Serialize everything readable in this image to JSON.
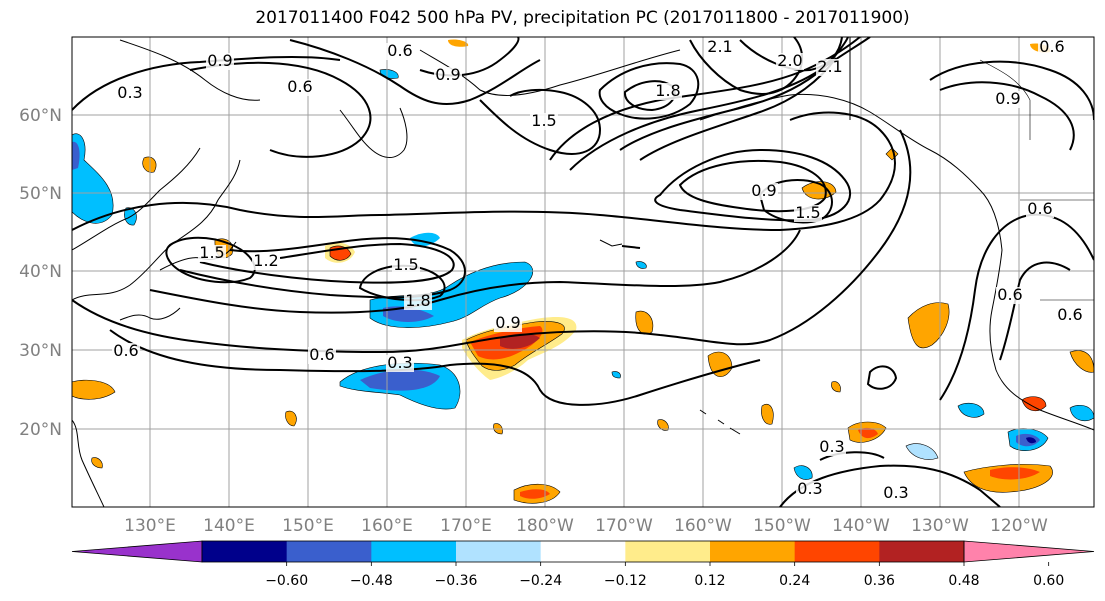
{
  "title": "2017011400 F042 500 hPa PV, precipitation PC (2017011800 - 2017011900)",
  "lat_ticks": [
    "60°N",
    "50°N",
    "40°N",
    "30°N",
    "20°N"
  ],
  "lon_ticks": [
    "130°E",
    "140°E",
    "150°E",
    "160°E",
    "170°E",
    "180°W",
    "170°W",
    "160°W",
    "150°W",
    "140°W",
    "130°W",
    "120°W"
  ],
  "colorbar": {
    "labels": [
      "−0.60",
      "−0.48",
      "−0.36",
      "−0.24",
      "−0.12",
      "0.12",
      "0.24",
      "0.36",
      "0.48",
      "0.60"
    ],
    "colors": [
      "#9932CC",
      "#00008B",
      "#3A5FCD",
      "#00BFFF",
      "#B0E2FF",
      "#FFFFFF",
      "#FFEC8B",
      "#FFA500",
      "#FF4500",
      "#B22222",
      "#FF82AB"
    ]
  },
  "contour_labels": [
    "0.9",
    "0.6",
    "0.3",
    "0.6",
    "0.9",
    "2.1",
    "2.0",
    "2.1",
    "1.8",
    "1.5",
    "0.9",
    "0.9",
    "1.5",
    "0.6",
    "1.5",
    "1.2",
    "1.5",
    "1.8",
    "0.9",
    "0.6",
    "0.3",
    "0.6",
    "0.3",
    "0.3",
    "0.6",
    "0.6",
    "0.6",
    "0.3"
  ]
}
